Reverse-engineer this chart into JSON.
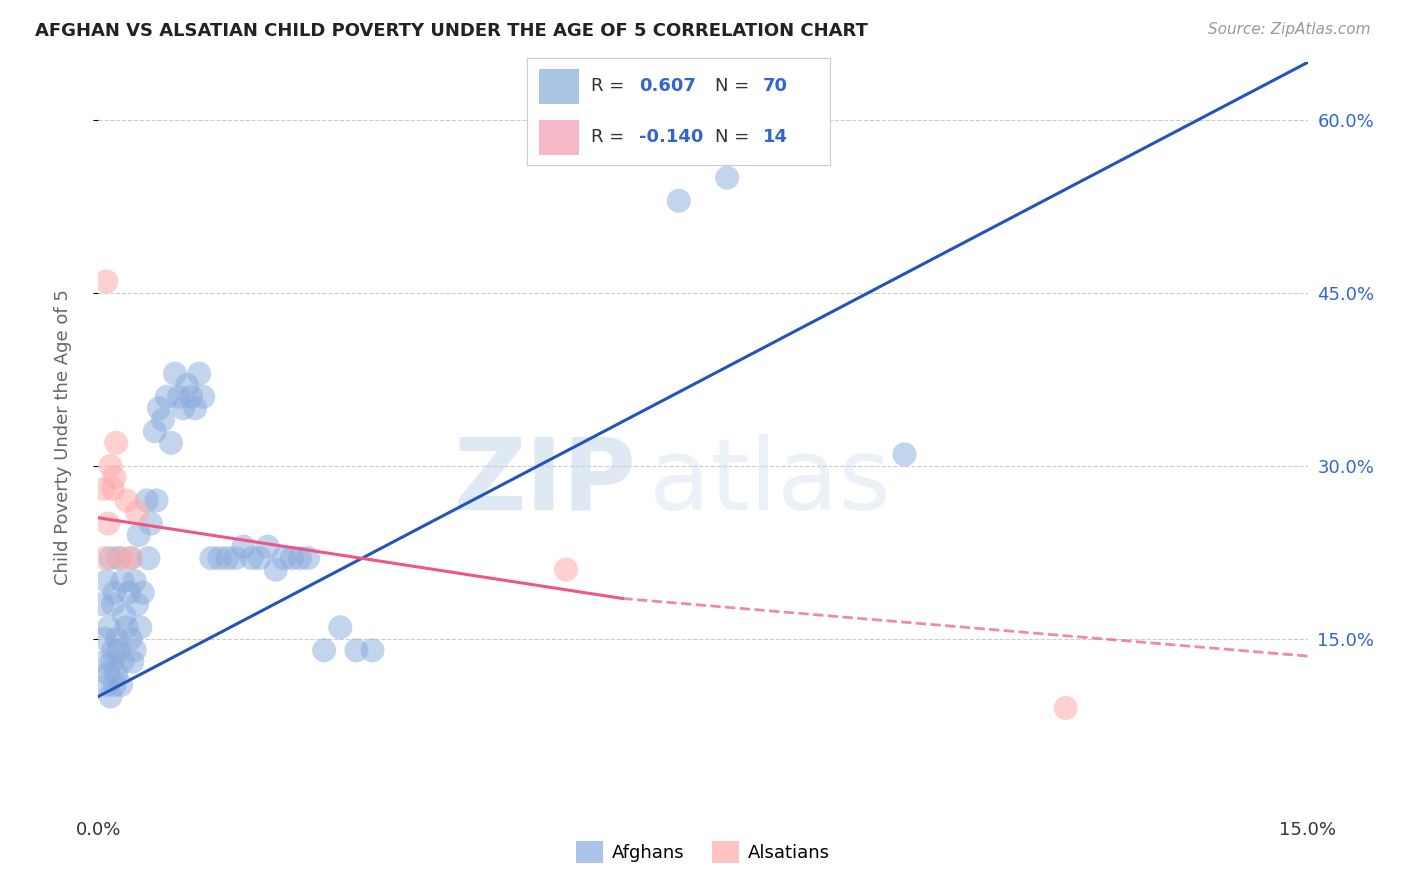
{
  "title": "AFGHAN VS ALSATIAN CHILD POVERTY UNDER THE AGE OF 5 CORRELATION CHART",
  "source": "Source: ZipAtlas.com",
  "ylabel": "Child Poverty Under the Age of 5",
  "xlim": [
    0.0,
    15.0
  ],
  "ylim": [
    0.0,
    65.0
  ],
  "yticks": [
    15.0,
    30.0,
    45.0,
    60.0
  ],
  "xtick_labels": [
    "0.0%",
    "",
    "",
    "",
    "15.0%"
  ],
  "xtick_positions": [
    0.0,
    3.75,
    7.5,
    11.25,
    15.0
  ],
  "afghan_R": 0.607,
  "afghan_N": 70,
  "alsatian_R": -0.14,
  "alsatian_N": 14,
  "afghan_color": "#88AADD",
  "alsatian_color": "#FFAAAA",
  "afghan_line_color": "#2255BB",
  "alsatian_line_color": "#EE5588",
  "background_color": "#ffffff",
  "grid_color": "#cccccc",
  "watermark_zip": "ZIP",
  "watermark_atlas": "atlas",
  "legend_box_color": "#ffffff",
  "legend_border_color": "#cccccc",
  "right_tick_color": "#3366CC",
  "afghan_x": [
    0.05,
    0.07,
    0.08,
    0.1,
    0.1,
    0.12,
    0.13,
    0.15,
    0.15,
    0.17,
    0.18,
    0.18,
    0.2,
    0.2,
    0.22,
    0.23,
    0.25,
    0.25,
    0.28,
    0.3,
    0.3,
    0.32,
    0.35,
    0.38,
    0.4,
    0.4,
    0.42,
    0.45,
    0.45,
    0.48,
    0.5,
    0.52,
    0.55,
    0.6,
    0.62,
    0.65,
    0.7,
    0.72,
    0.75,
    0.8,
    0.85,
    0.9,
    0.95,
    1.0,
    1.05,
    1.1,
    1.15,
    1.2,
    1.25,
    1.3,
    1.4,
    1.5,
    1.6,
    1.7,
    1.8,
    1.9,
    2.0,
    2.1,
    2.2,
    2.3,
    2.4,
    2.5,
    2.6,
    2.8,
    3.0,
    3.2,
    3.4,
    7.2,
    7.8,
    10.0
  ],
  "afghan_y": [
    18.0,
    13.0,
    15.0,
    11.0,
    20.0,
    12.0,
    16.0,
    10.0,
    22.0,
    13.0,
    14.0,
    18.0,
    11.0,
    19.0,
    12.0,
    15.0,
    14.0,
    22.0,
    11.0,
    13.0,
    20.0,
    17.0,
    16.0,
    19.0,
    15.0,
    22.0,
    13.0,
    14.0,
    20.0,
    18.0,
    24.0,
    16.0,
    19.0,
    27.0,
    22.0,
    25.0,
    33.0,
    27.0,
    35.0,
    34.0,
    36.0,
    32.0,
    38.0,
    36.0,
    35.0,
    37.0,
    36.0,
    35.0,
    38.0,
    36.0,
    22.0,
    22.0,
    22.0,
    22.0,
    23.0,
    22.0,
    22.0,
    23.0,
    21.0,
    22.0,
    22.0,
    22.0,
    22.0,
    14.0,
    16.0,
    14.0,
    14.0,
    53.0,
    55.0,
    31.0
  ],
  "alsatian_x": [
    0.07,
    0.08,
    0.1,
    0.12,
    0.15,
    0.18,
    0.2,
    0.22,
    0.28,
    0.35,
    0.4,
    0.48,
    5.8,
    12.0
  ],
  "alsatian_y": [
    28.0,
    22.0,
    46.0,
    25.0,
    30.0,
    28.0,
    29.0,
    32.0,
    22.0,
    27.0,
    22.0,
    26.0,
    21.0,
    9.0
  ],
  "blue_line_x0": 0.0,
  "blue_line_y0": 10.0,
  "blue_line_x1": 15.0,
  "blue_line_y1": 65.0,
  "pink_line_x0": 0.0,
  "pink_line_y0": 25.5,
  "pink_line_x1": 6.5,
  "pink_line_y1": 18.5,
  "pink_dash_x0": 6.5,
  "pink_dash_y0": 18.5,
  "pink_dash_x1": 15.0,
  "pink_dash_y1": 13.5
}
